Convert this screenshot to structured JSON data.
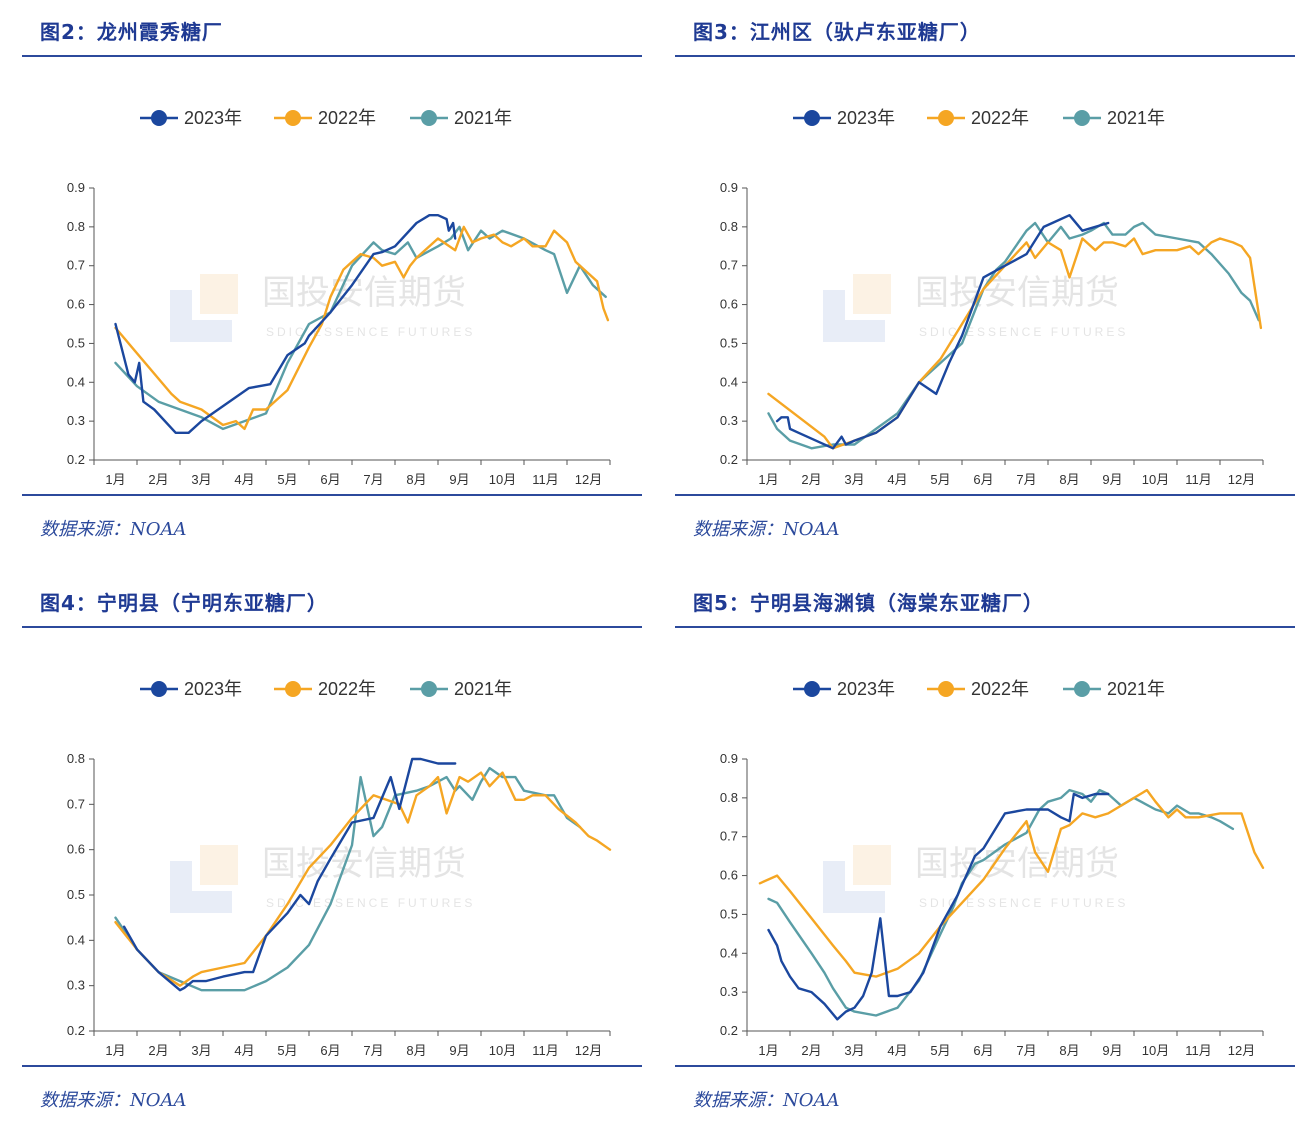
{
  "colors": {
    "y2023": "#1b479e",
    "y2022": "#f5a623",
    "y2021": "#5a9ea6",
    "axis": "#555555",
    "accent": "#2c4a9c"
  },
  "watermark": {
    "cn": "国投安信期货",
    "en": "SDIC ESSENCE FUTURES"
  },
  "panels": [
    {
      "title": "图2：龙州霞秀糖厂",
      "source": "数据来源：NOAA",
      "chart_data": {
        "type": "line",
        "title": "图2：龙州霞秀糖厂",
        "categories": [
          "1月",
          "2月",
          "3月",
          "4月",
          "5月",
          "6月",
          "7月",
          "8月",
          "9月",
          "10月",
          "11月",
          "12月"
        ],
        "ylim": [
          0.2,
          0.9
        ],
        "yticks": [
          "0.9",
          "0.8",
          "0.7",
          "0.6",
          "0.5",
          "0.4",
          "0.3",
          "0.2"
        ],
        "series": [
          {
            "name": "2023年",
            "key": "y2023",
            "x": [
              1.0,
              1.3,
              1.45,
              1.55,
              1.65,
              1.9,
              2.4,
              2.7,
              3.0,
              4.1,
              4.6,
              5.0,
              5.4,
              5.5,
              6.0,
              6.5,
              7.0,
              7.2,
              7.5,
              8.0,
              8.3,
              8.5,
              8.7,
              8.75,
              8.85,
              8.9
            ],
            "y": [
              0.55,
              0.42,
              0.4,
              0.45,
              0.35,
              0.33,
              0.27,
              0.27,
              0.3,
              0.385,
              0.395,
              0.47,
              0.5,
              0.52,
              0.58,
              0.65,
              0.73,
              0.735,
              0.75,
              0.81,
              0.83,
              0.83,
              0.82,
              0.79,
              0.81,
              0.77
            ]
          },
          {
            "name": "2022年",
            "key": "y2022",
            "x": [
              1.0,
              2.3,
              2.5,
              3.0,
              3.5,
              3.8,
              4.0,
              4.2,
              4.5,
              5.0,
              5.5,
              5.8,
              6.0,
              6.3,
              6.5,
              6.7,
              7.0,
              7.2,
              7.5,
              7.7,
              7.85,
              8.0,
              8.5,
              8.9,
              9.1,
              9.3,
              9.5,
              9.8,
              10.0,
              10.2,
              10.5,
              10.7,
              11.0,
              11.2,
              11.5,
              11.7,
              12.0,
              12.2,
              12.35,
              12.45
            ],
            "y": [
              0.54,
              0.37,
              0.35,
              0.33,
              0.29,
              0.3,
              0.28,
              0.33,
              0.33,
              0.38,
              0.49,
              0.55,
              0.62,
              0.69,
              0.71,
              0.73,
              0.72,
              0.7,
              0.71,
              0.67,
              0.7,
              0.72,
              0.77,
              0.74,
              0.8,
              0.76,
              0.77,
              0.78,
              0.76,
              0.75,
              0.77,
              0.75,
              0.75,
              0.79,
              0.76,
              0.71,
              0.68,
              0.66,
              0.59,
              0.56
            ]
          },
          {
            "name": "2021年",
            "key": "y2021",
            "x": [
              1.0,
              1.5,
              2.0,
              2.5,
              3.0,
              3.5,
              4.5,
              5.0,
              5.5,
              6.0,
              6.5,
              7.0,
              7.2,
              7.5,
              7.8,
              8.0,
              8.5,
              8.8,
              9.0,
              9.2,
              9.5,
              9.7,
              10.0,
              10.5,
              11.0,
              11.2,
              11.5,
              11.8,
              12.1,
              12.4
            ],
            "y": [
              0.45,
              0.39,
              0.35,
              0.33,
              0.31,
              0.28,
              0.32,
              0.45,
              0.55,
              0.58,
              0.7,
              0.76,
              0.74,
              0.73,
              0.76,
              0.72,
              0.75,
              0.77,
              0.8,
              0.74,
              0.79,
              0.77,
              0.79,
              0.77,
              0.74,
              0.73,
              0.63,
              0.7,
              0.65,
              0.62
            ]
          }
        ]
      }
    },
    {
      "title": "图3：江州区（驮卢东亚糖厂）",
      "source": "数据来源：NOAA",
      "chart_data": {
        "type": "line",
        "title": "图3：江州区（驮卢东亚糖厂）",
        "categories": [
          "1月",
          "2月",
          "3月",
          "4月",
          "5月",
          "6月",
          "7月",
          "8月",
          "9月",
          "10月",
          "11月",
          "12月"
        ],
        "ylim": [
          0.2,
          0.9
        ],
        "yticks": [
          "0.9",
          "0.8",
          "0.7",
          "0.6",
          "0.5",
          "0.4",
          "0.3",
          "0.2"
        ],
        "series": [
          {
            "name": "2023年",
            "key": "y2023",
            "x": [
              1.2,
              1.3,
              1.45,
              1.5,
              1.7,
              2.5,
              2.7,
              2.8,
              3.0,
              3.5,
              4.0,
              4.5,
              4.9,
              5.2,
              5.5,
              6.0,
              6.5,
              7.0,
              7.4,
              7.6,
              8.0,
              8.3,
              8.9
            ],
            "y": [
              0.3,
              0.31,
              0.31,
              0.28,
              0.27,
              0.23,
              0.26,
              0.24,
              0.25,
              0.27,
              0.31,
              0.4,
              0.37,
              0.45,
              0.52,
              0.67,
              0.7,
              0.73,
              0.8,
              0.81,
              0.83,
              0.79,
              0.81
            ]
          },
          {
            "name": "2022年",
            "key": "y2022",
            "x": [
              1.0,
              2.3,
              2.5,
              3.0,
              3.5,
              4.0,
              4.5,
              5.0,
              5.5,
              6.0,
              6.5,
              7.0,
              7.2,
              7.5,
              7.8,
              8.0,
              8.3,
              8.6,
              8.8,
              9.0,
              9.3,
              9.5,
              9.7,
              10.0,
              10.3,
              10.5,
              10.8,
              11.0,
              11.3,
              11.5,
              11.8,
              12.0,
              12.2,
              12.45
            ],
            "y": [
              0.37,
              0.26,
              0.23,
              0.25,
              0.27,
              0.31,
              0.4,
              0.46,
              0.55,
              0.64,
              0.7,
              0.76,
              0.72,
              0.76,
              0.74,
              0.67,
              0.77,
              0.74,
              0.76,
              0.76,
              0.75,
              0.77,
              0.73,
              0.74,
              0.74,
              0.74,
              0.75,
              0.73,
              0.76,
              0.77,
              0.76,
              0.75,
              0.72,
              0.54
            ]
          },
          {
            "name": "2021年",
            "key": "y2021",
            "x": [
              1.0,
              1.2,
              1.5,
              2.0,
              2.5,
              3.0,
              3.5,
              4.0,
              4.5,
              5.0,
              5.5,
              6.0,
              6.3,
              6.5,
              7.0,
              7.2,
              7.5,
              7.8,
              8.0,
              8.3,
              8.5,
              8.8,
              9.0,
              9.3,
              9.5,
              9.7,
              10.0,
              10.5,
              11.0,
              11.3,
              11.7,
              12.0,
              12.2,
              12.4
            ],
            "y": [
              0.32,
              0.28,
              0.25,
              0.23,
              0.24,
              0.24,
              0.28,
              0.32,
              0.4,
              0.45,
              0.5,
              0.64,
              0.69,
              0.71,
              0.79,
              0.81,
              0.76,
              0.8,
              0.77,
              0.78,
              0.79,
              0.81,
              0.78,
              0.78,
              0.8,
              0.81,
              0.78,
              0.77,
              0.76,
              0.73,
              0.68,
              0.63,
              0.61,
              0.56
            ]
          }
        ]
      }
    },
    {
      "title": "图4：宁明县（宁明东亚糖厂）",
      "source": "数据来源：NOAA",
      "chart_data": {
        "type": "line",
        "title": "图4：宁明县（宁明东亚糖厂）",
        "categories": [
          "1月",
          "2月",
          "3月",
          "4月",
          "5月",
          "6月",
          "7月",
          "8月",
          "9月",
          "10月",
          "11月",
          "12月"
        ],
        "ylim": [
          0.2,
          0.8
        ],
        "yticks": [
          "0.8",
          "0.7",
          "0.6",
          "0.5",
          "0.4",
          "0.3",
          "0.2"
        ],
        "series": [
          {
            "name": "2023年",
            "key": "y2023",
            "x": [
              1.2,
              1.5,
              2.0,
              2.5,
              2.6,
              2.8,
              3.0,
              3.1,
              3.5,
              4.0,
              4.2,
              4.5,
              5.0,
              5.3,
              5.5,
              5.7,
              6.0,
              6.5,
              7.0,
              7.4,
              7.6,
              7.9,
              8.1,
              8.5,
              8.9
            ],
            "y": [
              0.43,
              0.38,
              0.33,
              0.29,
              0.295,
              0.31,
              0.31,
              0.31,
              0.32,
              0.33,
              0.33,
              0.41,
              0.46,
              0.5,
              0.48,
              0.53,
              0.58,
              0.66,
              0.67,
              0.76,
              0.69,
              0.8,
              0.8,
              0.79,
              0.79
            ]
          },
          {
            "name": "2022年",
            "key": "y2022",
            "x": [
              1.0,
              1.5,
              2.0,
              2.5,
              2.8,
              3.0,
              3.5,
              4.0,
              4.5,
              5.0,
              5.5,
              6.0,
              6.5,
              7.0,
              7.3,
              7.6,
              7.8,
              8.0,
              8.3,
              8.5,
              8.7,
              9.0,
              9.2,
              9.5,
              9.7,
              10.0,
              10.3,
              10.5,
              10.7,
              11.0,
              11.3,
              11.7,
              12.0,
              12.2,
              12.5
            ],
            "y": [
              0.44,
              0.38,
              0.33,
              0.3,
              0.32,
              0.33,
              0.34,
              0.35,
              0.41,
              0.48,
              0.56,
              0.61,
              0.67,
              0.72,
              0.71,
              0.7,
              0.66,
              0.72,
              0.74,
              0.76,
              0.68,
              0.76,
              0.75,
              0.77,
              0.74,
              0.77,
              0.71,
              0.71,
              0.72,
              0.72,
              0.69,
              0.66,
              0.63,
              0.62,
              0.6
            ]
          },
          {
            "name": "2021年",
            "key": "y2021",
            "x": [
              1.0,
              1.5,
              2.0,
              2.5,
              3.0,
              3.5,
              4.0,
              4.5,
              5.0,
              5.5,
              6.0,
              6.5,
              6.7,
              7.0,
              7.2,
              7.5,
              8.0,
              8.3,
              8.7,
              8.9,
              9.0,
              9.3,
              9.5,
              9.7,
              10.0,
              10.3,
              10.5,
              11.0,
              11.2,
              11.5,
              11.8
            ],
            "y": [
              0.45,
              0.38,
              0.33,
              0.31,
              0.29,
              0.29,
              0.29,
              0.31,
              0.34,
              0.39,
              0.48,
              0.61,
              0.76,
              0.63,
              0.65,
              0.72,
              0.73,
              0.74,
              0.76,
              0.73,
              0.74,
              0.71,
              0.75,
              0.78,
              0.76,
              0.76,
              0.73,
              0.72,
              0.72,
              0.67,
              0.65
            ]
          }
        ]
      }
    },
    {
      "title": "图5：宁明县海渊镇（海棠东亚糖厂）",
      "source": "数据来源：NOAA",
      "chart_data": {
        "type": "line",
        "title": "图5：宁明县海渊镇（海棠东亚糖厂）",
        "categories": [
          "1月",
          "2月",
          "3月",
          "4月",
          "5月",
          "6月",
          "7月",
          "8月",
          "9月",
          "10月",
          "11月",
          "12月"
        ],
        "ylim": [
          0.2,
          0.9
        ],
        "yticks": [
          "0.9",
          "0.8",
          "0.7",
          "0.6",
          "0.5",
          "0.4",
          "0.3",
          "0.2"
        ],
        "series": [
          {
            "name": "2023年",
            "key": "y2023",
            "x": [
              1.0,
              1.2,
              1.3,
              1.5,
              1.7,
              2.0,
              2.3,
              2.6,
              2.8,
              3.0,
              3.2,
              3.4,
              3.6,
              3.8,
              4.0,
              4.3,
              4.6,
              5.0,
              5.4,
              5.8,
              6.0,
              6.5,
              7.0,
              7.5,
              7.8,
              8.0,
              8.1,
              8.3,
              8.6,
              8.9
            ],
            "y": [
              0.46,
              0.42,
              0.38,
              0.34,
              0.31,
              0.3,
              0.27,
              0.23,
              0.25,
              0.26,
              0.29,
              0.35,
              0.49,
              0.29,
              0.29,
              0.3,
              0.35,
              0.47,
              0.55,
              0.65,
              0.67,
              0.76,
              0.77,
              0.77,
              0.75,
              0.74,
              0.81,
              0.8,
              0.81,
              0.81
            ]
          },
          {
            "name": "2022年",
            "key": "y2022",
            "x": [
              0.8,
              1.2,
              1.5,
              2.0,
              2.5,
              2.8,
              3.0,
              3.5,
              4.0,
              4.5,
              5.0,
              5.5,
              6.0,
              6.5,
              7.0,
              7.2,
              7.5,
              7.8,
              8.0,
              8.3,
              8.6,
              8.9,
              9.2,
              9.5,
              9.8,
              10.0,
              10.3,
              10.5,
              10.7,
              11.0,
              11.5,
              12.0,
              12.3,
              12.5
            ],
            "y": [
              0.58,
              0.6,
              0.56,
              0.49,
              0.42,
              0.38,
              0.35,
              0.34,
              0.36,
              0.4,
              0.47,
              0.53,
              0.59,
              0.67,
              0.74,
              0.66,
              0.61,
              0.72,
              0.73,
              0.76,
              0.75,
              0.76,
              0.78,
              0.8,
              0.82,
              0.79,
              0.75,
              0.77,
              0.75,
              0.75,
              0.76,
              0.76,
              0.66,
              0.62
            ]
          },
          {
            "name": "2021年",
            "key": "y2021",
            "x": [
              1.0,
              1.2,
              1.5,
              2.0,
              2.3,
              2.5,
              2.8,
              3.0,
              3.5,
              4.0,
              4.5,
              5.0,
              5.3,
              5.5,
              5.8,
              6.0,
              6.5,
              7.0,
              7.3,
              7.5,
              7.8,
              8.0,
              8.3,
              8.5,
              8.7,
              8.9,
              9.2,
              9.5,
              10.0,
              10.3,
              10.5,
              10.8,
              11.0,
              11.3,
              11.5,
              11.8
            ],
            "y": [
              0.54,
              0.53,
              0.48,
              0.4,
              0.35,
              0.31,
              0.26,
              0.25,
              0.24,
              0.26,
              0.33,
              0.45,
              0.52,
              0.58,
              0.63,
              0.64,
              0.68,
              0.71,
              0.77,
              0.79,
              0.8,
              0.82,
              0.81,
              0.79,
              0.82,
              0.81,
              0.78,
              0.8,
              0.77,
              0.76,
              0.78,
              0.76,
              0.76,
              0.75,
              0.74,
              0.72
            ]
          }
        ]
      }
    }
  ]
}
